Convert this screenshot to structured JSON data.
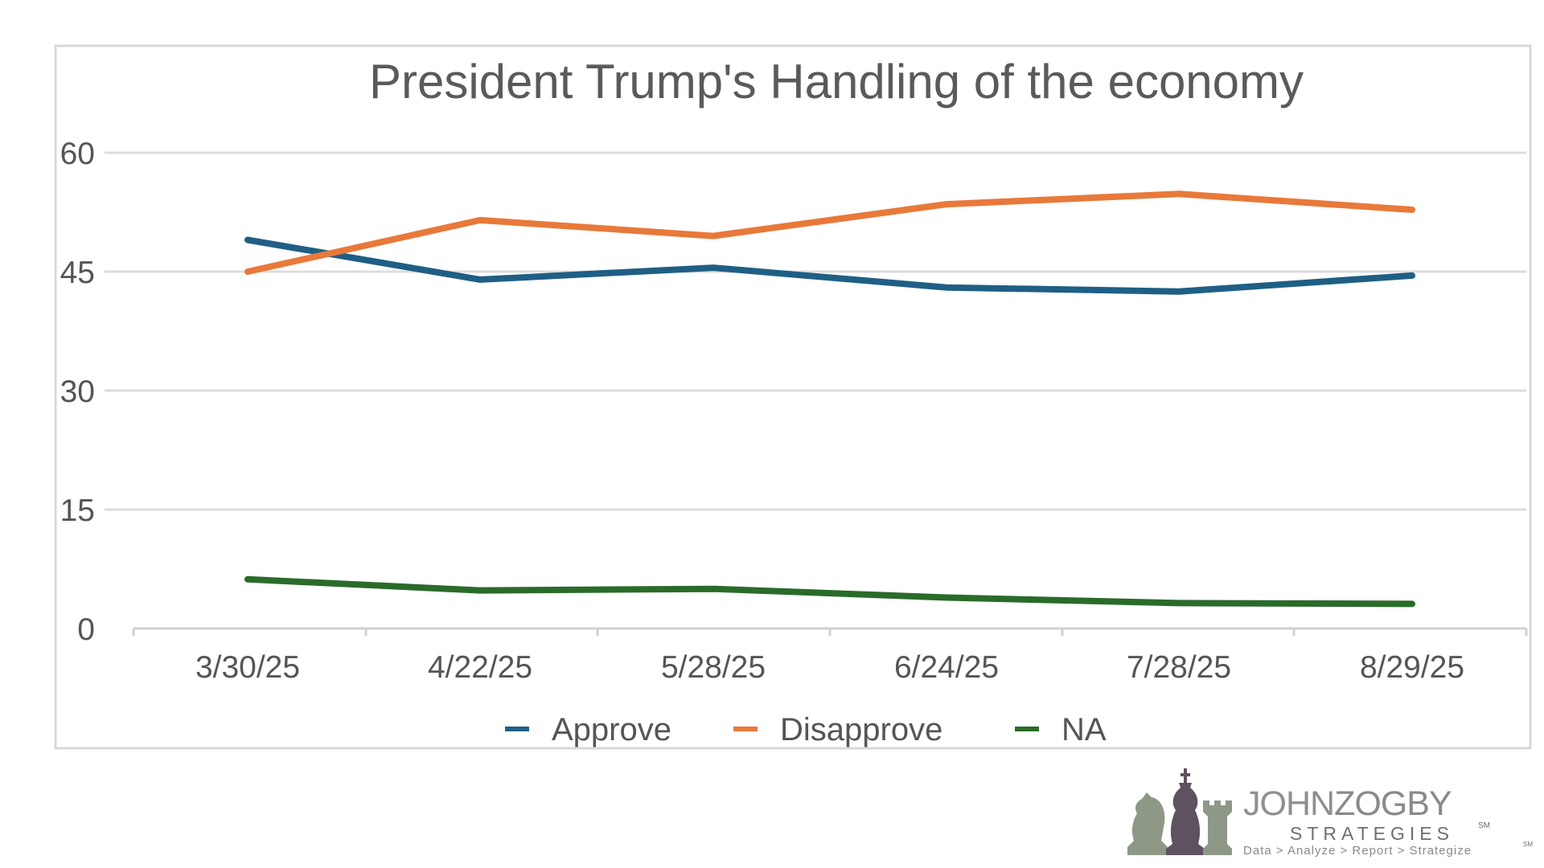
{
  "chart_data": {
    "type": "line",
    "title": "President Trump's Handling of the economy",
    "categories": [
      "3/30/25",
      "4/22/25",
      "5/28/25",
      "6/24/25",
      "7/28/25",
      "8/29/25"
    ],
    "series": [
      {
        "name": "Approve",
        "color": "#1f5f85",
        "values": [
          49,
          44,
          45.5,
          43,
          42.5,
          44.5
        ]
      },
      {
        "name": "Disapprove",
        "color": "#e8793a",
        "values": [
          45,
          51.5,
          49.5,
          53.5,
          54.8,
          52.8
        ]
      },
      {
        "name": "NA",
        "color": "#2a6b2a",
        "values": [
          6.2,
          4.8,
          5,
          3.9,
          3.2,
          3.1
        ]
      }
    ],
    "yticks": [
      0,
      15,
      30,
      45,
      60
    ],
    "ylim": [
      0,
      60
    ],
    "xlabel": "",
    "ylabel": "",
    "grid": true,
    "legend": "bottom-center"
  },
  "logo": {
    "name_part1": "JOHN",
    "name_part2": "ZOGBY",
    "subtitle": "STRATEGIES",
    "tagline": "Data > Analyze > Report > Strategize",
    "mark": "SM",
    "icon": "chess-pieces-icon"
  }
}
